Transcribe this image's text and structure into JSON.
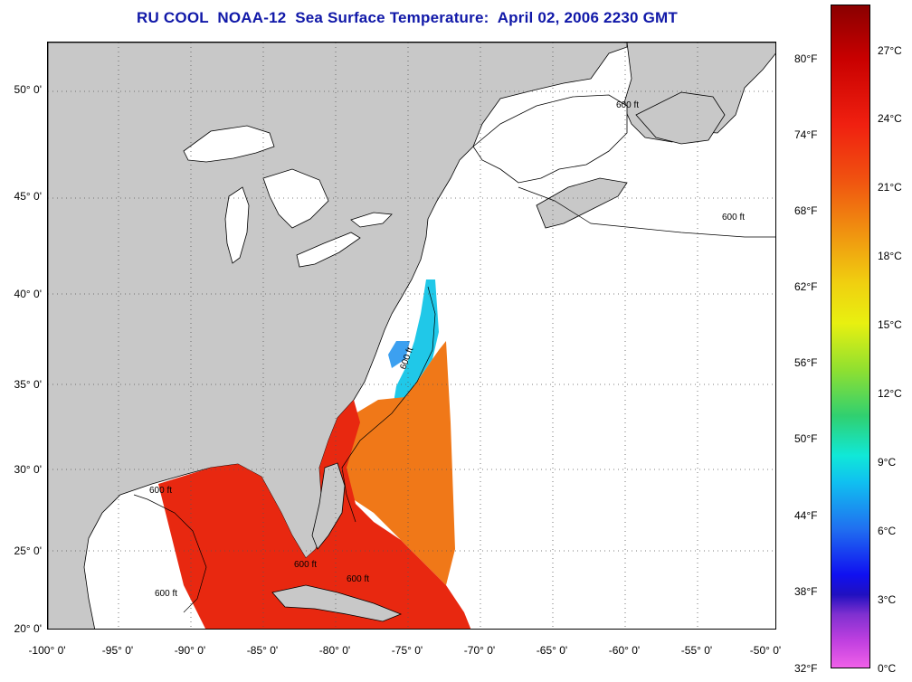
{
  "title": "RU COOL  NOAA-12  Sea Surface Temperature:  April 02, 2006 2230 GMT",
  "latitude_labels": [
    "50° 0'",
    "45° 0'",
    "40° 0'",
    "35° 0'",
    "30° 0'",
    "25° 0'",
    "20° 0'"
  ],
  "longitude_labels": [
    "-100° 0'",
    "-95° 0'",
    "-90° 0'",
    "-85° 0'",
    "-80° 0'",
    "-75° 0'",
    "-70° 0'",
    "-65° 0'",
    "-60° 0'",
    "-55° 0'",
    "-50° 0'"
  ],
  "contour_labels": [
    "600 ft",
    "600 ft",
    "600 ft",
    "600 ft",
    "600 ft",
    "600 ft",
    "600 ft"
  ],
  "colorbar": {
    "fahrenheit_labels": [
      "80°F",
      "74°F",
      "68°F",
      "62°F",
      "56°F",
      "50°F",
      "44°F",
      "38°F",
      "32°F"
    ],
    "celsius_labels": [
      "27°C",
      "24°C",
      "21°C",
      "18°C",
      "15°C",
      "12°C",
      "9°C",
      "6°C",
      "3°C",
      "0°C"
    ]
  },
  "colors": {
    "title": "#1018a8",
    "land": "#c8c8c8",
    "water_no_data": "#ffffff",
    "sst_warm": "#e82810",
    "sst_mid": "#f07818",
    "sst_cool": "#20c8e8"
  }
}
